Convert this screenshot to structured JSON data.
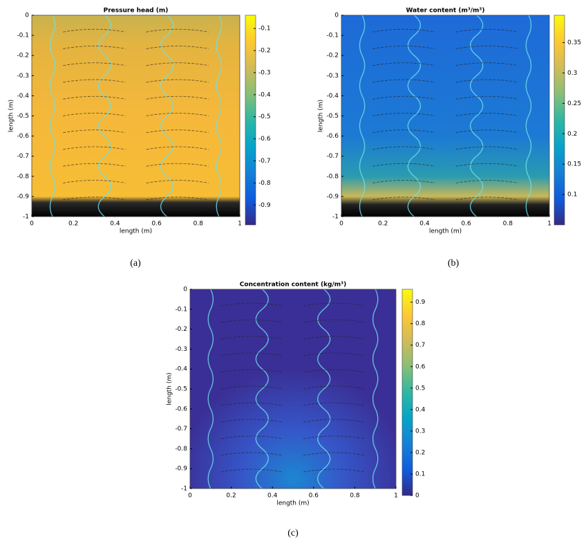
{
  "chart_data": [
    {
      "type": "heatmap",
      "title": "Pressure head (m)",
      "xlabel": "length (m)",
      "ylabel": "length (m)",
      "caption": "(a)",
      "xlim": [
        0,
        1
      ],
      "xticks": [
        0,
        0.2,
        0.4,
        0.6,
        0.8,
        1
      ],
      "ylim": [
        -1,
        0
      ],
      "yticks": [
        0,
        -0.1,
        -0.2,
        -0.3,
        -0.4,
        -0.5,
        -0.6,
        -0.7,
        -0.8,
        -0.9,
        -1
      ],
      "colormap": "parula",
      "clim": [
        -0.99,
        -0.04
      ],
      "cticks": [
        -0.1,
        -0.2,
        -0.3,
        -0.4,
        -0.5,
        -0.6,
        -0.7,
        -0.8,
        -0.9
      ]
    },
    {
      "type": "heatmap",
      "title": "Water content (m³/m³)",
      "xlabel": "length (m)",
      "ylabel": "length (m)",
      "caption": "(b)",
      "xlim": [
        0,
        1
      ],
      "xticks": [
        0,
        0.2,
        0.4,
        0.6,
        0.8,
        1
      ],
      "ylim": [
        -1,
        0
      ],
      "yticks": [
        0,
        -0.1,
        -0.2,
        -0.3,
        -0.4,
        -0.5,
        -0.6,
        -0.7,
        -0.8,
        -0.9,
        -1
      ],
      "colormap": "parula",
      "clim": [
        0.05,
        0.395
      ],
      "cticks": [
        0.1,
        0.15,
        0.2,
        0.25,
        0.3,
        0.35
      ]
    },
    {
      "type": "heatmap",
      "title": "Concentration content (kg/m³)",
      "xlabel": "length (m)",
      "ylabel": "length (m)",
      "caption": "(c)",
      "xlim": [
        0,
        1
      ],
      "xticks": [
        0,
        0.2,
        0.4,
        0.6,
        0.8,
        1
      ],
      "ylim": [
        -1,
        0
      ],
      "yticks": [
        0,
        -0.1,
        -0.2,
        -0.3,
        -0.4,
        -0.5,
        -0.6,
        -0.7,
        -0.8,
        -0.9,
        -1
      ],
      "colormap": "parula",
      "clim": [
        0,
        0.96
      ],
      "cticks": [
        0,
        0.1,
        0.2,
        0.3,
        0.4,
        0.5,
        0.6,
        0.7,
        0.8,
        0.9
      ]
    }
  ]
}
